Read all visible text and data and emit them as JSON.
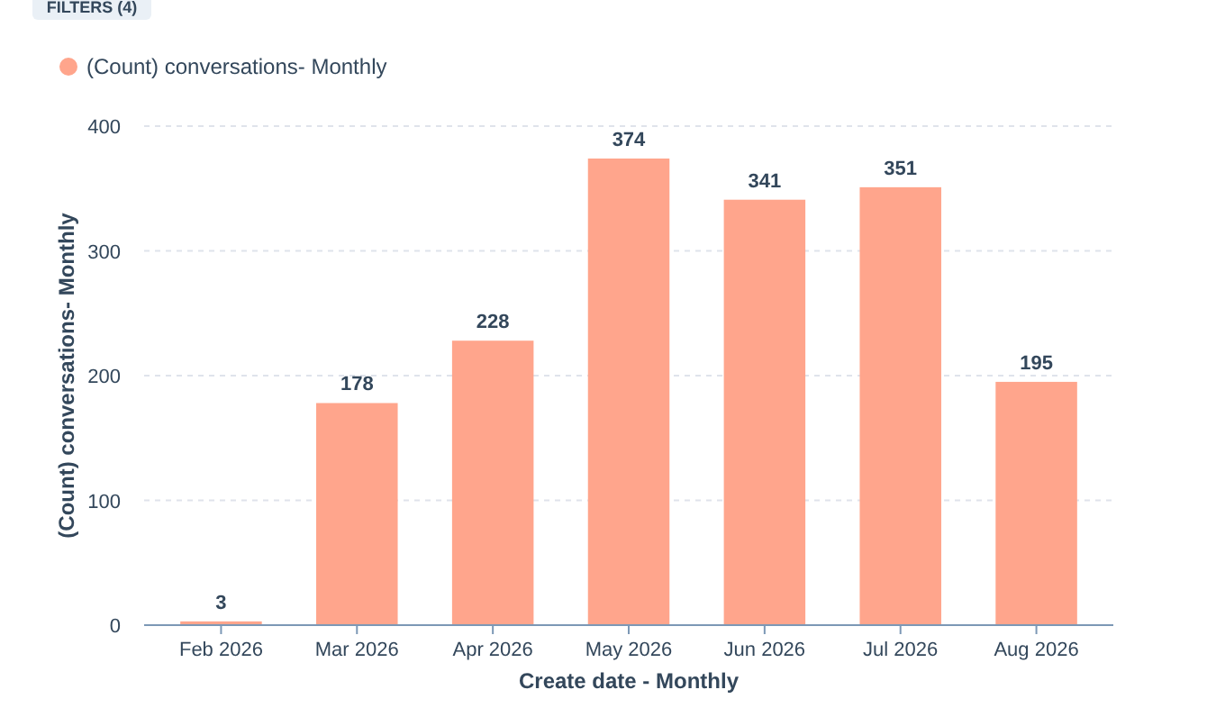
{
  "chart_data": {
    "type": "bar",
    "xlabel": "Create date - Monthly",
    "ylabel": "(Count) conversations- Monthly",
    "categories": [
      "Feb 2026",
      "Mar 2026",
      "Apr 2026",
      "May 2026",
      "Jun 2026",
      "Jul 2026",
      "Aug 2026"
    ],
    "series": [
      {
        "name": "(Count) conversations- Monthly",
        "color": "#ffa58c",
        "values": [
          3,
          178,
          228,
          374,
          341,
          351,
          195
        ]
      }
    ],
    "ylim": [
      0,
      400
    ],
    "yticks": [
      0,
      100,
      200,
      300,
      400
    ],
    "grid": "y",
    "legend": "top left",
    "data_labels": true,
    "annotations": [
      "FILTERS (4)"
    ]
  }
}
